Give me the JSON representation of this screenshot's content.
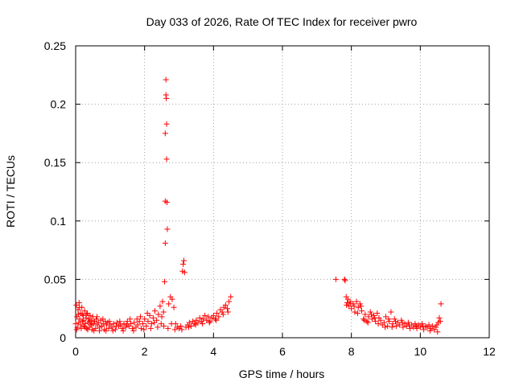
{
  "chart_data": {
    "type": "scatter",
    "title": "Day 033 of 2026, Rate Of TEC Index for receiver pwro",
    "xlabel": "GPS time / hours",
    "ylabel": "ROTI / TECUs",
    "xlim": [
      0,
      12
    ],
    "ylim": [
      0,
      0.25
    ],
    "xticks": [
      "0",
      "2",
      "4",
      "6",
      "8",
      "10",
      "12"
    ],
    "yticks": [
      "0",
      "0.05",
      "0.1",
      "0.15",
      "0.2",
      "0.25"
    ],
    "grid": true,
    "marker": "plus",
    "color": "#ff0000",
    "series": [
      {
        "points": [
          [
            0.0,
            0.012
          ],
          [
            0.02,
            0.028
          ],
          [
            0.04,
            0.018
          ],
          [
            0.05,
            0.009
          ],
          [
            0.07,
            0.024
          ],
          [
            0.09,
            0.013
          ],
          [
            0.1,
            0.03
          ],
          [
            0.12,
            0.016
          ],
          [
            0.14,
            0.021
          ],
          [
            0.16,
            0.008
          ],
          [
            0.18,
            0.026
          ],
          [
            0.2,
            0.014
          ],
          [
            0.22,
            0.019
          ],
          [
            0.24,
            0.01
          ],
          [
            0.26,
            0.023
          ],
          [
            0.28,
            0.012
          ],
          [
            0.3,
            0.017
          ],
          [
            0.32,
            0.008
          ],
          [
            0.34,
            0.021
          ],
          [
            0.36,
            0.013
          ],
          [
            0.38,
            0.016
          ],
          [
            0.4,
            0.009
          ],
          [
            0.42,
            0.019
          ],
          [
            0.44,
            0.011
          ],
          [
            0.46,
            0.015
          ],
          [
            0.48,
            0.007
          ],
          [
            0.5,
            0.018
          ],
          [
            0.52,
            0.012
          ],
          [
            0.55,
            0.014
          ],
          [
            0.58,
            0.008
          ],
          [
            0.6,
            0.016
          ],
          [
            0.63,
            0.011
          ],
          [
            0.66,
            0.013
          ],
          [
            0.7,
            0.009
          ],
          [
            0.73,
            0.015
          ],
          [
            0.76,
            0.01
          ],
          [
            0.8,
            0.012
          ],
          [
            0.83,
            0.007
          ],
          [
            0.86,
            0.014
          ],
          [
            0.9,
            0.011
          ],
          [
            0.93,
            0.013
          ],
          [
            0.96,
            0.008
          ],
          [
            1.0,
            0.011
          ],
          [
            1.05,
            0.009
          ],
          [
            1.1,
            0.012
          ],
          [
            1.15,
            0.007
          ],
          [
            1.2,
            0.013
          ],
          [
            1.25,
            0.01
          ],
          [
            1.3,
            0.011
          ],
          [
            1.35,
            0.008
          ],
          [
            1.4,
            0.012
          ],
          [
            1.45,
            0.009
          ],
          [
            1.5,
            0.014
          ],
          [
            1.55,
            0.01
          ],
          [
            1.6,
            0.012
          ],
          [
            1.65,
            0.008
          ],
          [
            1.7,
            0.013
          ],
          [
            1.75,
            0.009
          ],
          [
            1.8,
            0.011
          ],
          [
            1.85,
            0.014
          ],
          [
            1.9,
            0.008
          ],
          [
            1.95,
            0.012
          ],
          [
            2.0,
            0.016
          ],
          [
            2.05,
            0.01
          ],
          [
            2.1,
            0.014
          ],
          [
            2.15,
            0.019
          ],
          [
            2.2,
            0.012
          ],
          [
            2.25,
            0.017
          ],
          [
            2.3,
            0.023
          ],
          [
            2.35,
            0.015
          ],
          [
            2.4,
            0.02
          ],
          [
            2.45,
            0.027
          ],
          [
            2.5,
            0.018
          ],
          [
            2.52,
            0.031
          ],
          [
            2.55,
            0.022
          ],
          [
            2.58,
            0.048
          ],
          [
            2.6,
            0.081
          ],
          [
            2.6,
            0.117
          ],
          [
            2.6,
            0.175
          ],
          [
            2.62,
            0.221
          ],
          [
            2.62,
            0.208
          ],
          [
            2.63,
            0.205
          ],
          [
            2.64,
            0.183
          ],
          [
            2.64,
            0.153
          ],
          [
            2.65,
            0.116
          ],
          [
            2.66,
            0.093
          ],
          [
            2.7,
            0.029
          ],
          [
            2.75,
            0.035
          ],
          [
            2.8,
            0.033
          ],
          [
            2.85,
            0.026
          ],
          [
            2.9,
            0.012
          ],
          [
            2.95,
            0.009
          ],
          [
            3.0,
            0.008
          ],
          [
            3.05,
            0.01
          ],
          [
            3.1,
            0.057
          ],
          [
            3.12,
            0.063
          ],
          [
            3.14,
            0.066
          ],
          [
            3.16,
            0.056
          ],
          [
            3.2,
            0.009
          ],
          [
            3.25,
            0.011
          ],
          [
            3.3,
            0.013
          ],
          [
            3.35,
            0.01
          ],
          [
            3.4,
            0.014
          ],
          [
            3.45,
            0.012
          ],
          [
            3.5,
            0.015
          ],
          [
            3.55,
            0.013
          ],
          [
            3.6,
            0.017
          ],
          [
            3.65,
            0.014
          ],
          [
            3.7,
            0.016
          ],
          [
            3.75,
            0.019
          ],
          [
            3.8,
            0.015
          ],
          [
            3.85,
            0.018
          ],
          [
            3.9,
            0.014
          ],
          [
            3.95,
            0.017
          ],
          [
            4.0,
            0.019
          ],
          [
            4.05,
            0.016
          ],
          [
            4.1,
            0.021
          ],
          [
            4.15,
            0.018
          ],
          [
            4.2,
            0.024
          ],
          [
            4.25,
            0.022
          ],
          [
            4.3,
            0.026
          ],
          [
            4.35,
            0.028
          ],
          [
            4.4,
            0.025
          ],
          [
            4.45,
            0.031
          ],
          [
            4.5,
            0.035
          ],
          [
            0.03,
            0.007
          ],
          [
            0.08,
            0.02
          ],
          [
            0.11,
            0.026
          ],
          [
            0.15,
            0.011
          ],
          [
            0.19,
            0.02
          ],
          [
            0.23,
            0.015
          ],
          [
            0.27,
            0.009
          ],
          [
            0.31,
            0.02
          ],
          [
            0.35,
            0.007
          ],
          [
            0.41,
            0.014
          ],
          [
            0.47,
            0.012
          ],
          [
            0.53,
            0.006
          ],
          [
            0.62,
            0.018
          ],
          [
            0.69,
            0.006
          ],
          [
            0.79,
            0.016
          ],
          [
            0.88,
            0.006
          ],
          [
            0.98,
            0.014
          ],
          [
            1.08,
            0.006
          ],
          [
            1.18,
            0.01
          ],
          [
            1.28,
            0.014
          ],
          [
            1.38,
            0.006
          ],
          [
            1.48,
            0.011
          ],
          [
            1.58,
            0.016
          ],
          [
            1.68,
            0.006
          ],
          [
            1.78,
            0.016
          ],
          [
            1.88,
            0.018
          ],
          [
            1.98,
            0.007
          ],
          [
            2.08,
            0.021
          ],
          [
            2.18,
            0.008
          ],
          [
            2.28,
            0.013
          ],
          [
            2.38,
            0.009
          ],
          [
            2.48,
            0.012
          ],
          [
            2.56,
            0.01
          ],
          [
            2.68,
            0.008
          ],
          [
            2.78,
            0.012
          ],
          [
            2.88,
            0.007
          ],
          [
            3.08,
            0.007
          ],
          [
            3.28,
            0.009
          ],
          [
            3.48,
            0.011
          ],
          [
            3.68,
            0.012
          ],
          [
            3.88,
            0.013
          ],
          [
            4.08,
            0.015
          ],
          [
            4.28,
            0.02
          ],
          [
            4.42,
            0.022
          ],
          [
            7.55,
            0.05
          ],
          [
            7.8,
            0.05
          ],
          [
            7.82,
            0.049
          ],
          [
            7.85,
            0.035
          ],
          [
            7.88,
            0.03
          ],
          [
            7.9,
            0.033
          ],
          [
            7.93,
            0.027
          ],
          [
            7.96,
            0.031
          ],
          [
            8.0,
            0.025
          ],
          [
            8.05,
            0.029
          ],
          [
            8.1,
            0.022
          ],
          [
            8.15,
            0.031
          ],
          [
            8.2,
            0.026
          ],
          [
            8.25,
            0.029
          ],
          [
            8.3,
            0.023
          ],
          [
            8.35,
            0.016
          ],
          [
            8.4,
            0.02
          ],
          [
            8.45,
            0.014
          ],
          [
            8.5,
            0.018
          ],
          [
            8.55,
            0.022
          ],
          [
            8.6,
            0.016
          ],
          [
            8.65,
            0.019
          ],
          [
            8.7,
            0.014
          ],
          [
            8.75,
            0.021
          ],
          [
            8.8,
            0.017
          ],
          [
            8.85,
            0.015
          ],
          [
            8.9,
            0.011
          ],
          [
            8.95,
            0.013
          ],
          [
            9.0,
            0.018
          ],
          [
            9.05,
            0.01
          ],
          [
            9.1,
            0.014
          ],
          [
            9.15,
            0.022
          ],
          [
            9.2,
            0.012
          ],
          [
            9.25,
            0.016
          ],
          [
            9.3,
            0.01
          ],
          [
            9.35,
            0.013
          ],
          [
            9.4,
            0.011
          ],
          [
            9.45,
            0.015
          ],
          [
            9.5,
            0.009
          ],
          [
            9.55,
            0.012
          ],
          [
            9.6,
            0.01
          ],
          [
            9.65,
            0.013
          ],
          [
            9.7,
            0.008
          ],
          [
            9.75,
            0.011
          ],
          [
            9.8,
            0.009
          ],
          [
            9.85,
            0.012
          ],
          [
            9.9,
            0.008
          ],
          [
            9.95,
            0.011
          ],
          [
            10.0,
            0.009
          ],
          [
            10.05,
            0.012
          ],
          [
            10.1,
            0.007
          ],
          [
            10.15,
            0.01
          ],
          [
            10.2,
            0.009
          ],
          [
            10.25,
            0.011
          ],
          [
            10.3,
            0.008
          ],
          [
            10.35,
            0.01
          ],
          [
            10.4,
            0.007
          ],
          [
            10.45,
            0.009
          ],
          [
            10.5,
            0.005
          ],
          [
            10.52,
            0.013
          ],
          [
            10.55,
            0.017
          ],
          [
            10.58,
            0.014
          ],
          [
            10.6,
            0.029
          ],
          [
            7.86,
            0.028
          ],
          [
            7.98,
            0.029
          ],
          [
            8.08,
            0.027
          ],
          [
            8.18,
            0.021
          ],
          [
            8.28,
            0.027
          ],
          [
            8.38,
            0.015
          ],
          [
            8.48,
            0.013
          ],
          [
            8.58,
            0.02
          ],
          [
            8.68,
            0.017
          ],
          [
            8.78,
            0.012
          ],
          [
            8.98,
            0.009
          ],
          [
            9.08,
            0.016
          ],
          [
            9.18,
            0.009
          ],
          [
            9.28,
            0.014
          ],
          [
            9.48,
            0.013
          ],
          [
            9.68,
            0.011
          ],
          [
            9.88,
            0.01
          ],
          [
            10.08,
            0.01
          ],
          [
            10.28,
            0.006
          ],
          [
            10.48,
            0.011
          ]
        ]
      }
    ]
  }
}
